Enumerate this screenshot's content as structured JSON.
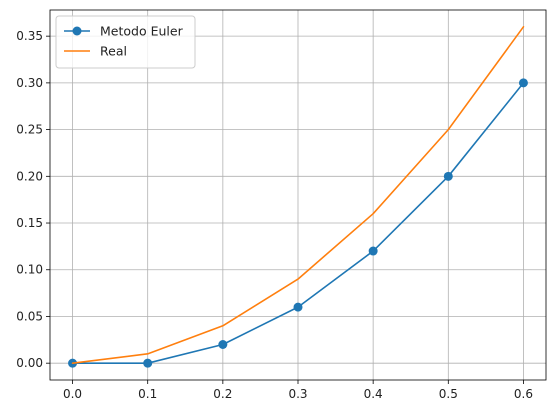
{
  "chart_data": {
    "type": "line",
    "title": "",
    "xlabel": "",
    "ylabel": "",
    "x": [
      0.0,
      0.1,
      0.2,
      0.3,
      0.4,
      0.5,
      0.6
    ],
    "xlim": [
      -0.03,
      0.63
    ],
    "ylim": [
      -0.018,
      0.378
    ],
    "xticks": [
      0.0,
      0.1,
      0.2,
      0.3,
      0.4,
      0.5,
      0.6
    ],
    "xtick_labels": [
      "0.0",
      "0.1",
      "0.2",
      "0.3",
      "0.4",
      "0.5",
      "0.6"
    ],
    "yticks": [
      0.0,
      0.05,
      0.1,
      0.15,
      0.2,
      0.25,
      0.3,
      0.35
    ],
    "ytick_labels": [
      "0.00",
      "0.05",
      "0.10",
      "0.15",
      "0.20",
      "0.25",
      "0.30",
      "0.35"
    ],
    "grid": true,
    "legend_position": "top-left",
    "series": [
      {
        "name": "Metodo Euler",
        "values": [
          0.0,
          0.0,
          0.02,
          0.06,
          0.12,
          0.2,
          0.3
        ],
        "color": "#1f77b4",
        "marker": "circle"
      },
      {
        "name": "Real",
        "values": [
          0.0,
          0.01,
          0.04,
          0.09,
          0.16,
          0.25,
          0.36
        ],
        "color": "#ff7f0e",
        "marker": "none"
      }
    ]
  }
}
